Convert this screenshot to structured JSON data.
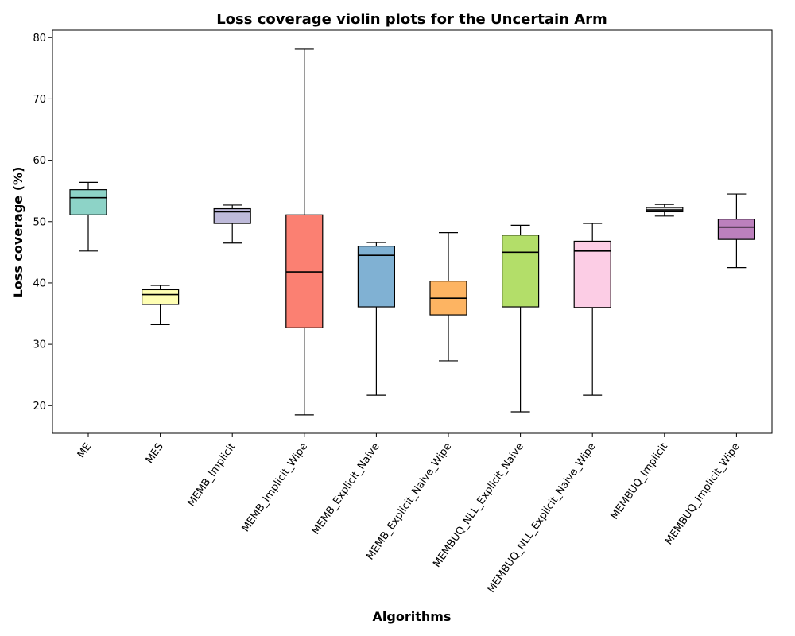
{
  "chart_data": {
    "type": "box",
    "title": "Loss coverage violin plots for the Uncertain Arm",
    "xlabel": "Algorithms",
    "ylabel": "Loss coverage (%)",
    "ylim": [
      15.5,
      81.2
    ],
    "yticks": [
      20,
      30,
      40,
      50,
      60,
      70,
      80
    ],
    "grid": false,
    "categories": [
      "ME",
      "MES",
      "MEMB_Implicit",
      "MEMB_Implicit_Wipe",
      "MEMB_Explicit_Naive",
      "MEMB_Explicit_Naive_Wipe",
      "MEMBUQ_NLL_Explicit_Naive",
      "MEMBUQ_NLL_Explicit_Naive_Wipe",
      "MEMBUQ_Implicit",
      "MEMBUQ_Implicit_Wipe"
    ],
    "boxes": [
      {
        "whisker_low": 45.2,
        "q1": 51.1,
        "median": 53.9,
        "q3": 55.2,
        "whisker_high": 56.4,
        "color": "#8dd3c7"
      },
      {
        "whisker_low": 33.2,
        "q1": 36.5,
        "median": 38.1,
        "q3": 38.9,
        "whisker_high": 39.6,
        "color": "#ffffb3"
      },
      {
        "whisker_low": 46.5,
        "q1": 49.7,
        "median": 51.6,
        "q3": 52.1,
        "whisker_high": 52.7,
        "color": "#bebada"
      },
      {
        "whisker_low": 18.5,
        "q1": 32.7,
        "median": 41.8,
        "q3": 51.1,
        "whisker_high": 78.1,
        "color": "#fb8072"
      },
      {
        "whisker_low": 21.7,
        "q1": 36.1,
        "median": 44.5,
        "q3": 46.0,
        "whisker_high": 46.6,
        "color": "#80b1d3"
      },
      {
        "whisker_low": 27.3,
        "q1": 34.8,
        "median": 37.5,
        "q3": 40.3,
        "whisker_high": 48.2,
        "color": "#fdb462"
      },
      {
        "whisker_low": 19.0,
        "q1": 36.1,
        "median": 45.0,
        "q3": 47.8,
        "whisker_high": 49.4,
        "color": "#b3de69"
      },
      {
        "whisker_low": 21.7,
        "q1": 36.0,
        "median": 45.2,
        "q3": 46.8,
        "whisker_high": 49.7,
        "color": "#fccde5"
      },
      {
        "whisker_low": 50.9,
        "q1": 51.6,
        "median": 51.9,
        "q3": 52.3,
        "whisker_high": 52.8,
        "color": "#d9d9d9"
      },
      {
        "whisker_low": 42.5,
        "q1": 47.1,
        "median": 49.1,
        "q3": 50.4,
        "whisker_high": 54.5,
        "color": "#bc80bd"
      }
    ]
  }
}
